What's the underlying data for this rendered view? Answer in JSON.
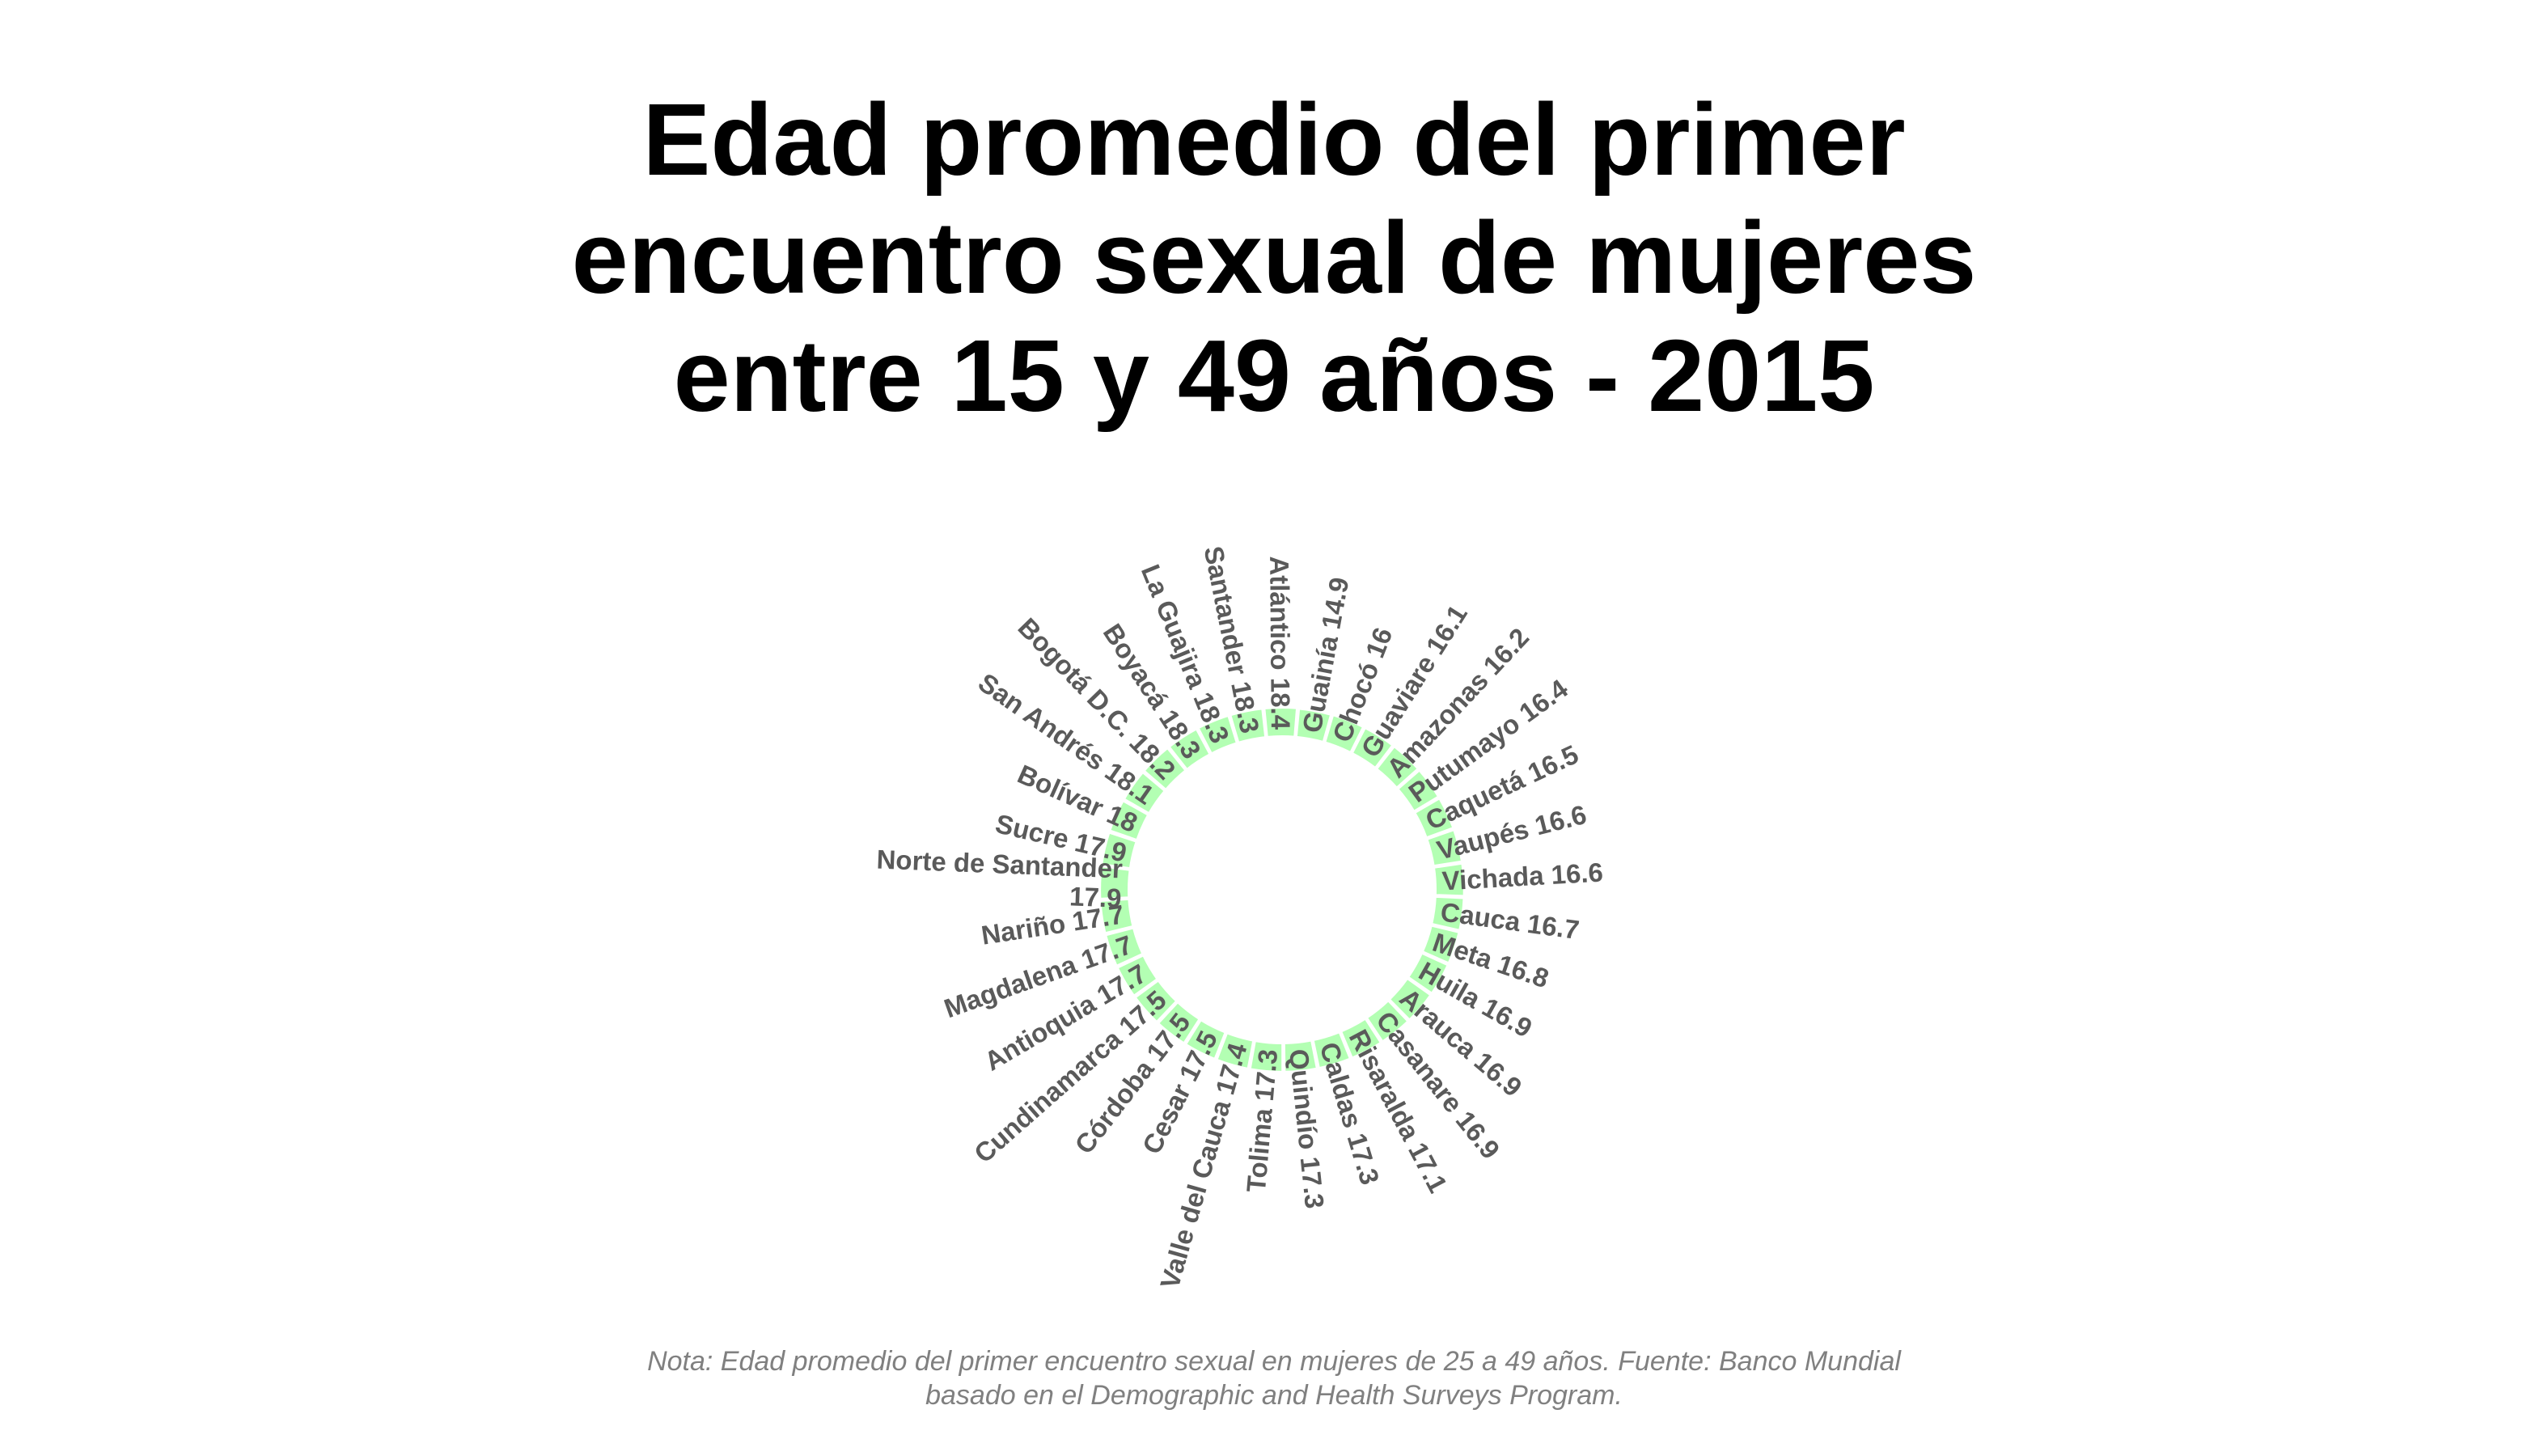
{
  "chart_data": {
    "type": "bar",
    "subtype": "circular-barplot",
    "title": "Edad promedio del primer\nencuentro sexual de mujeres\nentre 15 y 49 años - 2015",
    "note": "Nota: Edad promedio del primer encuentro sexual en mujeres de 25 a 49 años. Fuente: Banco Mundial\nbasado en el Demographic and Health Surveys Program.",
    "bar_color": "#b3ffb3",
    "label_color": "#5a5a5a",
    "categories": [
      "Guainía",
      "Chocó",
      "Guaviare",
      "Amazonas",
      "Putumayo",
      "Caquetá",
      "Vaupés",
      "Vichada",
      "Cauca",
      "Meta",
      "Huila",
      "Arauca",
      "Casanare",
      "Risaralda",
      "Caldas",
      "Quindío",
      "Tolima",
      "Valle del Cauca",
      "Cesar",
      "Córdoba",
      "Cundinamarca",
      "Antioquia",
      "Magdalena",
      "Nariño",
      "Norte de Santander",
      "Sucre",
      "Bolívar",
      "San Andrés",
      "Bogotá D.C.",
      "Boyacá",
      "La Guajira",
      "Santander",
      "Atlántico"
    ],
    "values": [
      14.9,
      16,
      16.1,
      16.2,
      16.4,
      16.5,
      16.6,
      16.6,
      16.7,
      16.8,
      16.9,
      16.9,
      16.9,
      17.1,
      17.3,
      17.3,
      17.3,
      17.4,
      17.5,
      17.5,
      17.5,
      17.7,
      17.7,
      17.7,
      17.9,
      17.9,
      18,
      18.1,
      18.2,
      18.3,
      18.3,
      18.3,
      18.4
    ],
    "labels": [
      "Guainía 14.9",
      "Chocó 16",
      "Guaviare 16.1",
      "Amazonas 16.2",
      "Putumayo 16.4",
      "Caquetá 16.5",
      "Vaupés 16.6",
      "Vichada 16.6",
      "Cauca 16.7",
      "Meta 16.8",
      "Huila 16.9",
      "Arauca 16.9",
      "Casanare 16.9",
      "Risaralda 17.1",
      "Caldas 17.3",
      "Quindío 17.3",
      "Tolima 17.3",
      "Valle del Cauca 17.4",
      "Cesar 17.5",
      "Córdoba 17.5",
      "Cundinamarca 17.5",
      "Antioquia 17.7",
      "Magdalena 17.7",
      "Nariño 17.7",
      "Norte de Santander\n17.9",
      "Sucre 17.9",
      "Bolívar 18",
      "San Andrés 18.1",
      "Bogotá D.C. 18.2",
      "Boyacá 18.3",
      "La Guajira 18.3",
      "Santander 18.3",
      "Atlántico 18.4"
    ]
  }
}
